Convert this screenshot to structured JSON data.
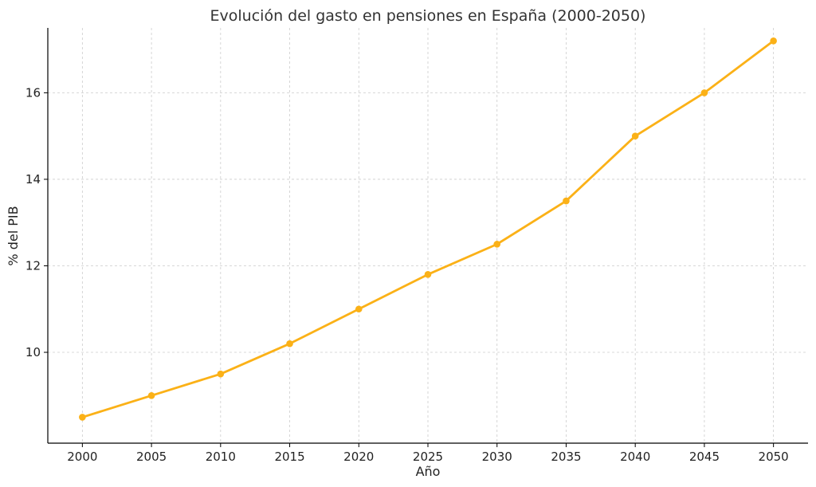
{
  "chart_data": {
    "type": "line",
    "title": "Evolución del gasto en pensiones en España (2000-2050)",
    "xlabel": "Año",
    "ylabel": "% del PIB",
    "x": [
      2000,
      2005,
      2010,
      2015,
      2020,
      2025,
      2030,
      2035,
      2040,
      2045,
      2050
    ],
    "series": [
      {
        "values": [
          8.5,
          9.0,
          9.5,
          10.2,
          11.0,
          11.8,
          12.5,
          13.5,
          15.0,
          16.0,
          17.2
        ]
      }
    ],
    "xticks": [
      "2000",
      "2005",
      "2010",
      "2015",
      "2020",
      "2025",
      "2030",
      "2035",
      "2040",
      "2045",
      "2050"
    ],
    "yticks": [
      "10",
      "12",
      "14",
      "16"
    ],
    "xlim": [
      1997.5,
      2052.5
    ],
    "ylim": [
      7.9,
      17.5
    ],
    "grid": true,
    "color": "#FBB117"
  }
}
